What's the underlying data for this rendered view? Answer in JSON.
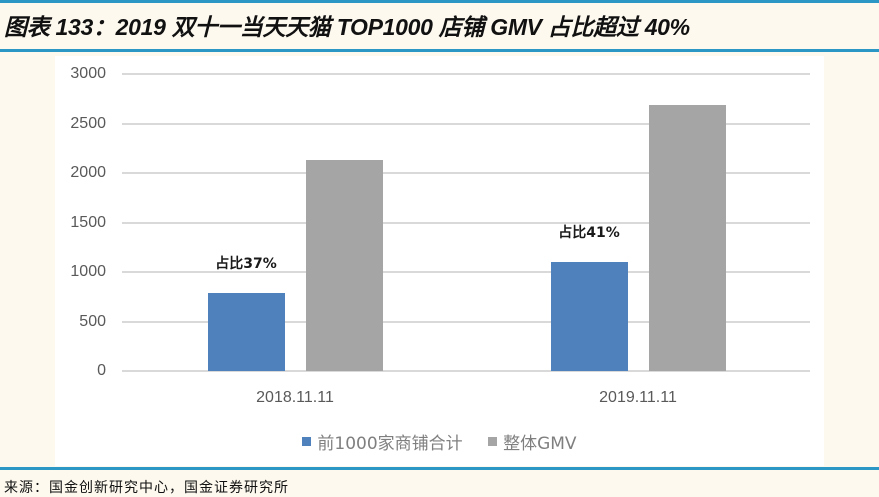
{
  "header": {
    "title": "图表 133：2019 双十一当天天猫 TOP1000 店铺 GMV 占比超过 40%"
  },
  "colors": {
    "rule": "#2b97c4",
    "series_top1000": "#4f81bd",
    "series_total": "#a5a5a5",
    "gridline": "#d9d9d9"
  },
  "chart_data": {
    "type": "bar",
    "title": "2019 双十一当天天猫 TOP1000 店铺 GMV 占比超过 40%",
    "xlabel": "",
    "ylabel": "",
    "categories": [
      "2018.11.11",
      "2019.11.11"
    ],
    "series": [
      {
        "name": "前1000家商铺合计",
        "color": "#4f81bd",
        "values": [
          790,
          1100
        ]
      },
      {
        "name": "整体GMV",
        "color": "#a5a5a5",
        "values": [
          2135,
          2684
        ]
      }
    ],
    "annotations": [
      "占比37%",
      "占比41%"
    ],
    "ylim": [
      0,
      3000
    ],
    "yticks": [
      0,
      500,
      1000,
      1500,
      2000,
      2500,
      3000
    ],
    "grid": true,
    "legend_position": "bottom"
  },
  "axis": {
    "yticks": [
      "3000",
      "2500",
      "2000",
      "1500",
      "1000",
      "500",
      "0"
    ],
    "categories": [
      "2018.11.11",
      "2019.11.11"
    ]
  },
  "annotations": [
    "占比37%",
    "占比41%"
  ],
  "legend": {
    "items": [
      {
        "label": "前1000家商铺合计"
      },
      {
        "label": "整体GMV"
      }
    ]
  },
  "footer": {
    "source": "来源：国金创新研究中心，国金证券研究所"
  }
}
